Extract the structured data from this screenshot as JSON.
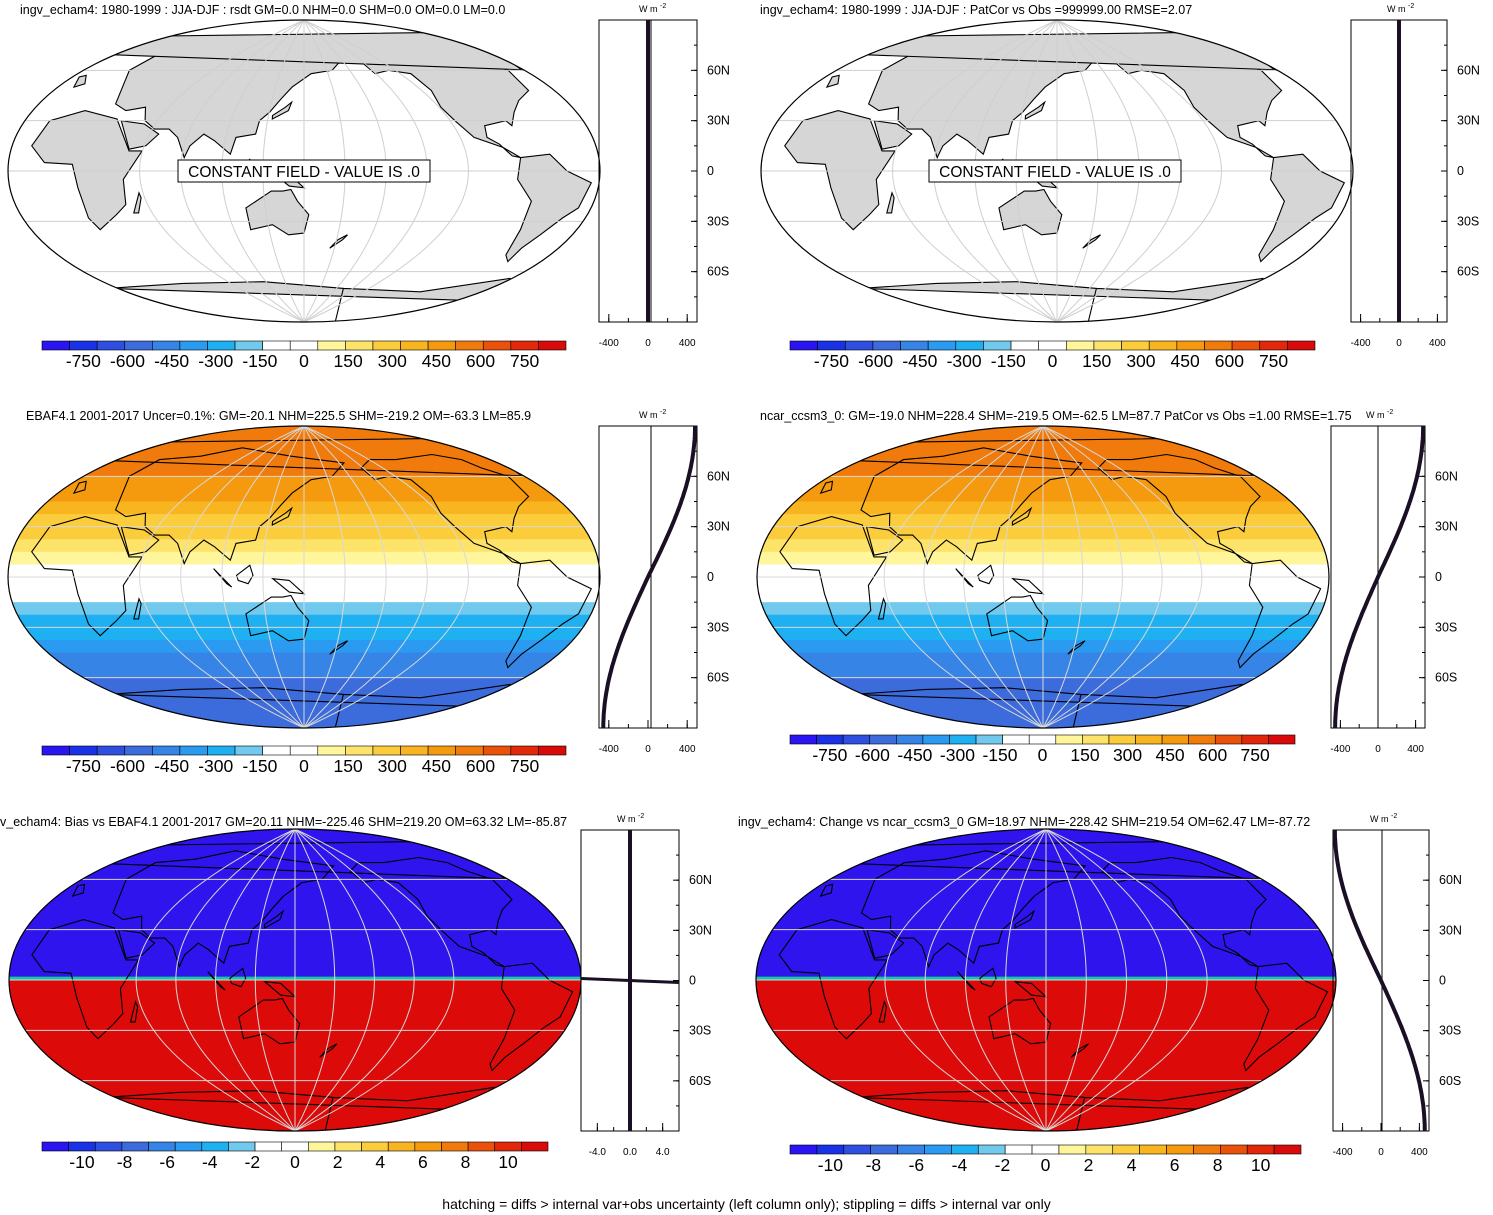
{
  "footer": "hatching = diffs > internal var+obs uncertainty (left column only); stippling = diffs > internal var only",
  "profile_unit": "W m",
  "profile_unit_exp": "-2",
  "colors": {
    "land": "#d6d6d6",
    "constant_box_text": "CONSTANT FIELD - VALUE IS .0"
  },
  "palette": [
    "#2a14f2",
    "#1a32e6",
    "#2f4fe0",
    "#3c6bdc",
    "#3584e6",
    "#2a9bf0",
    "#1fb0f2",
    "#72c9ee",
    "#ffffff",
    "#ffffff",
    "#fff59a",
    "#fde36a",
    "#fbcc3c",
    "#f9b51f",
    "#f59a0e",
    "#f07a0c",
    "#ea520c",
    "#e1280a",
    "#d80b0a"
  ],
  "chart_data": [
    {
      "type": "heatmap",
      "panel": "top-left",
      "title": "ingv_echam4: 1980-1999 : JJA-DJF : rsdt GM=0.0 NHM=0.0 SHM=0.0 OM=0.0 LM=0.0",
      "field": "constant",
      "annotation": "CONSTANT FIELD - VALUE IS .0",
      "colorbar_ticks": [
        "-750",
        "-600",
        "-450",
        "-300",
        "-150",
        "0",
        "150",
        "300",
        "450",
        "600",
        "750"
      ],
      "profile": {
        "x_ticks": [
          "-400",
          "0",
          "400"
        ],
        "lat_ticks": [
          "60N",
          "30N",
          "0",
          "30S",
          "60S"
        ],
        "xlim": [
          -500,
          500
        ],
        "zonal_mean": "zero"
      }
    },
    {
      "type": "heatmap",
      "panel": "top-right",
      "title": "ingv_echam4: 1980-1999 : JJA-DJF : PatCor vs Obs =999999.00 RMSE=2.07",
      "field": "constant",
      "annotation": "CONSTANT FIELD - VALUE IS .0",
      "colorbar_ticks": [
        "-750",
        "-600",
        "-450",
        "-300",
        "-150",
        "0",
        "150",
        "300",
        "450",
        "600",
        "750"
      ],
      "profile": {
        "x_ticks": [
          "-400",
          "0",
          "400"
        ],
        "lat_ticks": [
          "60N",
          "30N",
          "0",
          "30S",
          "60S"
        ],
        "xlim": [
          -500,
          500
        ],
        "zonal_mean": "zero"
      }
    },
    {
      "type": "heatmap",
      "panel": "middle-left",
      "title": "EBAF4.1 2001-2017 Uncer=0.1%: GM=-20.1 NHM=225.5 SHM=-219.2 OM=-63.3 LM=85.9",
      "field": "seasonal_insolation",
      "colorbar_ticks": [
        "-750",
        "-600",
        "-450",
        "-300",
        "-150",
        "0",
        "150",
        "300",
        "450",
        "600",
        "750"
      ],
      "profile": {
        "x_ticks": [
          "-400",
          "0",
          "400"
        ],
        "lat_ticks": [
          "60N",
          "30N",
          "0",
          "30S",
          "60S"
        ],
        "xlim": [
          -500,
          500
        ],
        "zonal_mean": "curve"
      }
    },
    {
      "type": "heatmap",
      "panel": "middle-right",
      "title": "ncar_ccsm3_0: GM=-19.0 NHM=228.4 SHM=-219.5 OM=-62.5 LM=87.7 PatCor vs Obs =1.00 RMSE=1.75",
      "field": "seasonal_insolation",
      "colorbar_ticks": [
        "-750",
        "-600",
        "-450",
        "-300",
        "-150",
        "0",
        "150",
        "300",
        "450",
        "600",
        "750"
      ],
      "profile": {
        "x_ticks": [
          "-400",
          "0",
          "400"
        ],
        "lat_ticks": [
          "60N",
          "30N",
          "0",
          "30S",
          "60S"
        ],
        "xlim": [
          -500,
          500
        ],
        "zonal_mean": "curve"
      }
    },
    {
      "type": "heatmap",
      "panel": "bottom-left",
      "title": "v_echam4: Bias vs EBAF4.1 2001-2017 GM=20.11 NHM=-225.46 SHM=219.20 OM=63.32 LM=-85.87",
      "field": "bias",
      "colorbar_ticks": [
        "-10",
        "-8",
        "-6",
        "-4",
        "-2",
        "0",
        "2",
        "4",
        "6",
        "8",
        "10"
      ],
      "profile": {
        "x_ticks": [
          "-4.0",
          "0.0",
          "4.0"
        ],
        "lat_ticks": [
          "60N",
          "30N",
          "0",
          "30S",
          "60S"
        ],
        "xlim": [
          -6,
          6
        ],
        "zonal_mean": "jump"
      }
    },
    {
      "type": "heatmap",
      "panel": "bottom-right",
      "title": "ingv_echam4: Change vs ncar_ccsm3_0 GM=18.97 NHM=-228.42 SHM=219.54 OM=62.47 LM=-87.72",
      "field": "change",
      "colorbar_ticks": [
        "-10",
        "-8",
        "-6",
        "-4",
        "-2",
        "0",
        "2",
        "4",
        "6",
        "8",
        "10"
      ],
      "profile": {
        "x_ticks": [
          "-400",
          "0",
          "400"
        ],
        "lat_ticks": [
          "60N",
          "30N",
          "0",
          "30S",
          "60S"
        ],
        "xlim": [
          -500,
          500
        ],
        "zonal_mean": "inverse_curve"
      }
    }
  ]
}
